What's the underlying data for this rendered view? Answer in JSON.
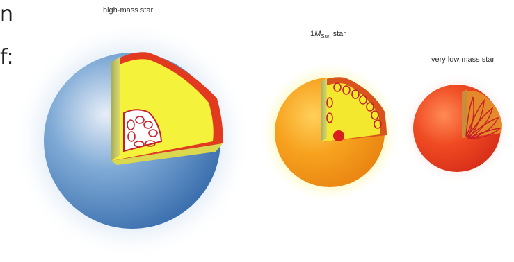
{
  "slide_fragments": {
    "line1": "n",
    "line2": "f:"
  },
  "stars": [
    {
      "label": "high-mass star",
      "core_structure": "convective core, radiative envelope"
    },
    {
      "label_prefix": "1",
      "label_symbol": "M",
      "label_subscript": "Sun",
      "label_suffix": " star",
      "core_structure": "radiative core, convective envelope"
    },
    {
      "label": "very low mass star",
      "core_structure": "fully convective"
    }
  ],
  "colors": {
    "high_mass_surface": "#4f86c4",
    "high_mass_glow": "#cfe0f2",
    "sun_surface": "#f59a1a",
    "sun_glow": "#fff07a",
    "low_mass_surface": "#e8361c",
    "low_mass_glow": "#fbd2cb",
    "interior_yellow": "#f5f23c",
    "interior_wall": "#9aa04a",
    "shell_red": "#e23a1e",
    "convection_loop": "#c8202a"
  }
}
